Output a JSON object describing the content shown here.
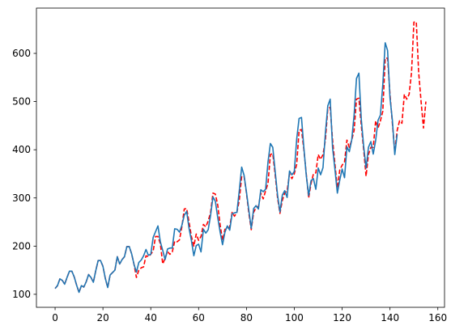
{
  "chart_data": {
    "type": "line",
    "title": "",
    "xlabel": "",
    "ylabel": "",
    "xlim": [
      -7.8,
      162.8
    ],
    "ylim": [
      73,
      694
    ],
    "grid": false,
    "x_ticks": [
      0,
      20,
      40,
      60,
      80,
      100,
      120,
      140,
      160
    ],
    "y_ticks": [
      100,
      200,
      300,
      400,
      500,
      600
    ],
    "series": [
      {
        "color": "#ff0000",
        "style": "dashed",
        "x": [
          0,
          1,
          2,
          3,
          4,
          5,
          6,
          7,
          8,
          9,
          10,
          11,
          12,
          13,
          14,
          15,
          16,
          17,
          18,
          19,
          20,
          21,
          22,
          23,
          24,
          25,
          26,
          27,
          28,
          29,
          30,
          31,
          32,
          33,
          34,
          35,
          36,
          37,
          38,
          39,
          40,
          41,
          42,
          43,
          44,
          45,
          46,
          47,
          48,
          49,
          50,
          51,
          52,
          53,
          54,
          55,
          56,
          57,
          58,
          59,
          60,
          61,
          62,
          63,
          64,
          65,
          66,
          67,
          68,
          69,
          70,
          71,
          72,
          73,
          74,
          75,
          76,
          77,
          78,
          79,
          80,
          81,
          82,
          83,
          84,
          85,
          86,
          87,
          88,
          89,
          90,
          91,
          92,
          93,
          94,
          95,
          96,
          97,
          98,
          99,
          100,
          101,
          102,
          103,
          104,
          105,
          106,
          107,
          108,
          109,
          110,
          111,
          112,
          113,
          114,
          115,
          116,
          117,
          118,
          119,
          120,
          121,
          122,
          123,
          124,
          125,
          126,
          127,
          128,
          129,
          130,
          131,
          132,
          133,
          134,
          135,
          136,
          137,
          138,
          139,
          140,
          141,
          142,
          143,
          144,
          145,
          146,
          147,
          148,
          149,
          150,
          151,
          152,
          153,
          154,
          155
        ],
        "values": [
          112,
          118,
          132,
          129,
          121,
          135,
          148,
          148,
          136,
          119,
          104,
          118,
          115,
          126,
          141,
          135,
          125,
          149,
          170,
          170,
          158,
          133,
          114,
          140,
          145,
          150,
          178,
          163,
          172,
          178,
          199,
          199,
          184,
          162,
          135,
          150,
          155,
          157,
          180,
          178,
          183,
          190,
          220,
          220,
          205,
          163,
          175,
          189,
          183,
          188,
          210,
          209,
          213,
          240,
          277,
          278,
          250,
          220,
          200,
          225,
          212,
          220,
          245,
          240,
          252,
          270,
          310,
          308,
          285,
          244,
          212,
          235,
          235,
          240,
          270,
          262,
          270,
          295,
          345,
          345,
          310,
          268,
          234,
          270,
          280,
          282,
          310,
          298,
          315,
          330,
          390,
          392,
          348,
          300,
          268,
          295,
          310,
          315,
          350,
          340,
          350,
          370,
          440,
          442,
          400,
          350,
          300,
          330,
          350,
          352,
          390,
          380,
          390,
          420,
          485,
          488,
          420,
          370,
          320,
          358,
          368,
          375,
          420,
          405,
          420,
          440,
          505,
          507,
          450,
          400,
          345,
          390,
          405,
          405,
          460,
          445,
          460,
          480,
          590,
          590,
          515,
          455,
          395,
          440,
          460,
          455,
          515,
          505,
          515,
          560,
          665,
          665,
          560,
          500,
          445,
          500
        ]
      },
      {
        "color": "#1f77b4",
        "style": "solid",
        "x": [
          0,
          1,
          2,
          3,
          4,
          5,
          6,
          7,
          8,
          9,
          10,
          11,
          12,
          13,
          14,
          15,
          16,
          17,
          18,
          19,
          20,
          21,
          22,
          23,
          24,
          25,
          26,
          27,
          28,
          29,
          30,
          31,
          32,
          33,
          34,
          35,
          36,
          37,
          38,
          39,
          40,
          41,
          42,
          43,
          44,
          45,
          46,
          47,
          48,
          49,
          50,
          51,
          52,
          53,
          54,
          55,
          56,
          57,
          58,
          59,
          60,
          61,
          62,
          63,
          64,
          65,
          66,
          67,
          68,
          69,
          70,
          71,
          72,
          73,
          74,
          75,
          76,
          77,
          78,
          79,
          80,
          81,
          82,
          83,
          84,
          85,
          86,
          87,
          88,
          89,
          90,
          91,
          92,
          93,
          94,
          95,
          96,
          97,
          98,
          99,
          100,
          101,
          102,
          103,
          104,
          105,
          106,
          107,
          108,
          109,
          110,
          111,
          112,
          113,
          114,
          115,
          116,
          117,
          118,
          119,
          120,
          121,
          122,
          123,
          124,
          125,
          126,
          127,
          128,
          129,
          130,
          131,
          132,
          133,
          134,
          135,
          136,
          137,
          138,
          139,
          140,
          141,
          142,
          143
        ],
        "values": [
          112,
          118,
          132,
          129,
          121,
          135,
          148,
          148,
          136,
          119,
          104,
          118,
          115,
          126,
          141,
          135,
          125,
          149,
          170,
          170,
          158,
          133,
          114,
          140,
          145,
          150,
          178,
          163,
          172,
          178,
          199,
          199,
          184,
          162,
          146,
          166,
          171,
          180,
          193,
          181,
          183,
          218,
          230,
          242,
          209,
          191,
          172,
          194,
          196,
          196,
          236,
          235,
          229,
          243,
          264,
          272,
          237,
          211,
          180,
          201,
          204,
          188,
          235,
          227,
          234,
          264,
          302,
          293,
          259,
          229,
          203,
          229,
          242,
          233,
          267,
          269,
          270,
          315,
          364,
          347,
          312,
          274,
          237,
          278,
          284,
          277,
          317,
          313,
          318,
          374,
          413,
          405,
          355,
          306,
          271,
          306,
          315,
          301,
          356,
          348,
          355,
          422,
          465,
          467,
          404,
          347,
          305,
          336,
          340,
          318,
          362,
          348,
          363,
          435,
          491,
          505,
          404,
          359,
          310,
          337,
          360,
          342,
          406,
          396,
          420,
          472,
          548,
          559,
          463,
          407,
          362,
          405,
          417,
          391,
          419,
          461,
          472,
          535,
          622,
          606,
          508,
          461,
          390,
          432
        ]
      }
    ]
  }
}
